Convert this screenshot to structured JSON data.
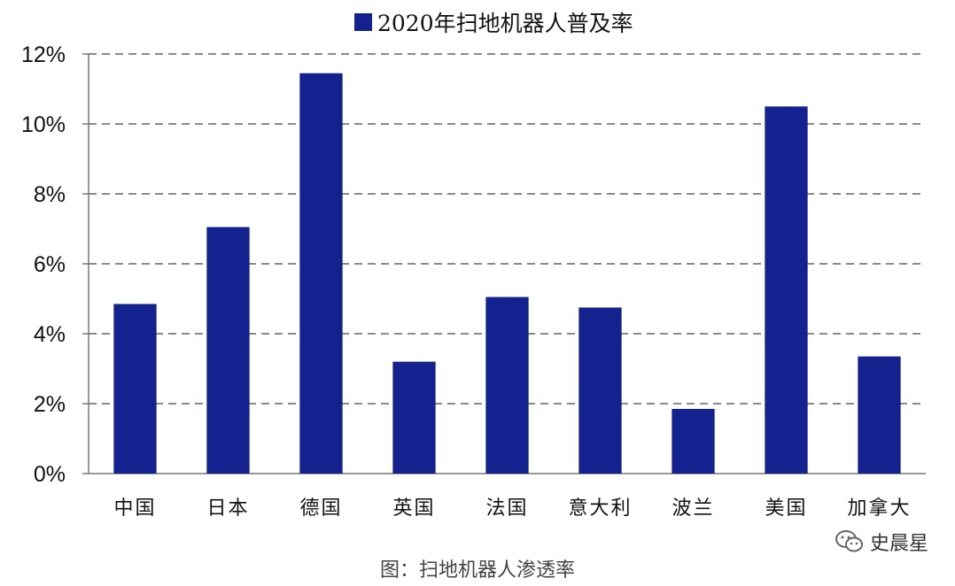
{
  "chart_data": {
    "type": "bar",
    "title": "",
    "xlabel": "",
    "ylabel": "",
    "categories": [
      "中国",
      "日本",
      "德国",
      "英国",
      "法国",
      "意大利",
      "波兰",
      "美国",
      "加拿大"
    ],
    "series": [
      {
        "name": "2020年扫地机器人普及率",
        "color": "#13228f",
        "values": [
          4.85,
          7.05,
          11.45,
          3.2,
          5.05,
          4.75,
          1.85,
          10.5,
          3.35
        ]
      }
    ],
    "ylim": [
      0,
      12
    ],
    "yticks": [
      0,
      2,
      4,
      6,
      8,
      10,
      12
    ],
    "ytick_format": "percent",
    "grid": "horizontal-dashed",
    "legend_position": "top-center"
  },
  "caption": "图：扫地机器人渗透率",
  "watermark": {
    "icon": "wechat-icon",
    "text": "史晨星"
  }
}
